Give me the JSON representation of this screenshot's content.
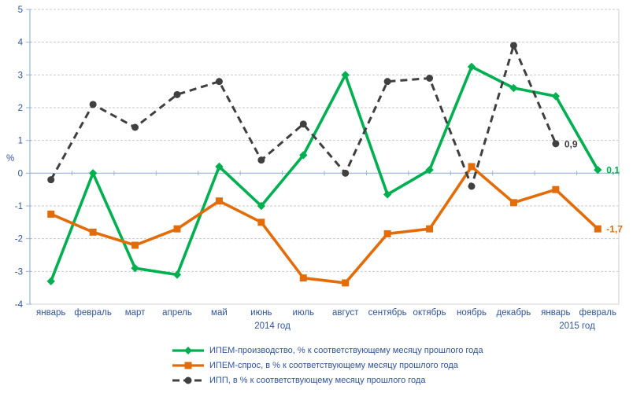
{
  "chart_data": {
    "type": "line",
    "title": "",
    "xlabel": "",
    "ylabel": "%",
    "ylim": [
      -4,
      5
    ],
    "ytick_step": 1,
    "grid": "horizontal-dashed",
    "legend_position": "bottom",
    "categories": [
      "январь",
      "февраль",
      "март",
      "апрель",
      "май",
      "июнь",
      "июль",
      "август",
      "сентябрь",
      "октябрь",
      "ноябрь",
      "декабрь",
      "январь",
      "февраль"
    ],
    "x_axis_years": [
      "2014 год",
      "2015 год"
    ],
    "series": [
      {
        "key": "production",
        "name": "ИПЕМ-производство, % к соответствующему месяцу прошлого года",
        "color": "#00B050",
        "marker": "diamond",
        "line_style": "solid",
        "values": [
          -3.3,
          0,
          -2.9,
          -3.1,
          0.2,
          -1.0,
          0.55,
          3.0,
          -0.65,
          0.1,
          3.25,
          2.6,
          2.35,
          0.1
        ]
      },
      {
        "key": "demand",
        "name": "ИПЕМ-спрос, в % к соответствующему месяцу прошлого года",
        "color": "#E36C09",
        "marker": "square",
        "line_style": "solid",
        "values": [
          -1.25,
          -1.8,
          -2.2,
          -1.7,
          -0.85,
          -1.5,
          -3.2,
          -3.35,
          -1.85,
          -1.7,
          0.2,
          -0.9,
          -0.5,
          -1.7
        ]
      },
      {
        "key": "ipp",
        "name": "ИПП, в % к соответствующему месяцу прошлого года",
        "color": "#404040",
        "marker": "circle",
        "line_style": "dashed",
        "values": [
          -0.2,
          2.1,
          1.4,
          2.4,
          2.8,
          0.4,
          1.5,
          0.0,
          2.8,
          2.9,
          -0.4,
          3.9,
          0.9,
          null
        ]
      }
    ],
    "annotations": [
      {
        "text": "0,9",
        "series": "ipp",
        "x_index": 12,
        "value": 0.9
      },
      {
        "text": "0,1",
        "series": "production",
        "x_index": 13,
        "value": 0.1
      },
      {
        "text": "-1,7",
        "series": "demand",
        "x_index": 13,
        "value": -1.7
      }
    ],
    "colors": {
      "axis_line": "#95B3D7",
      "gridline": "#C9C9C9",
      "border": "#D9D9D9",
      "text_blue": "#31549B"
    }
  }
}
